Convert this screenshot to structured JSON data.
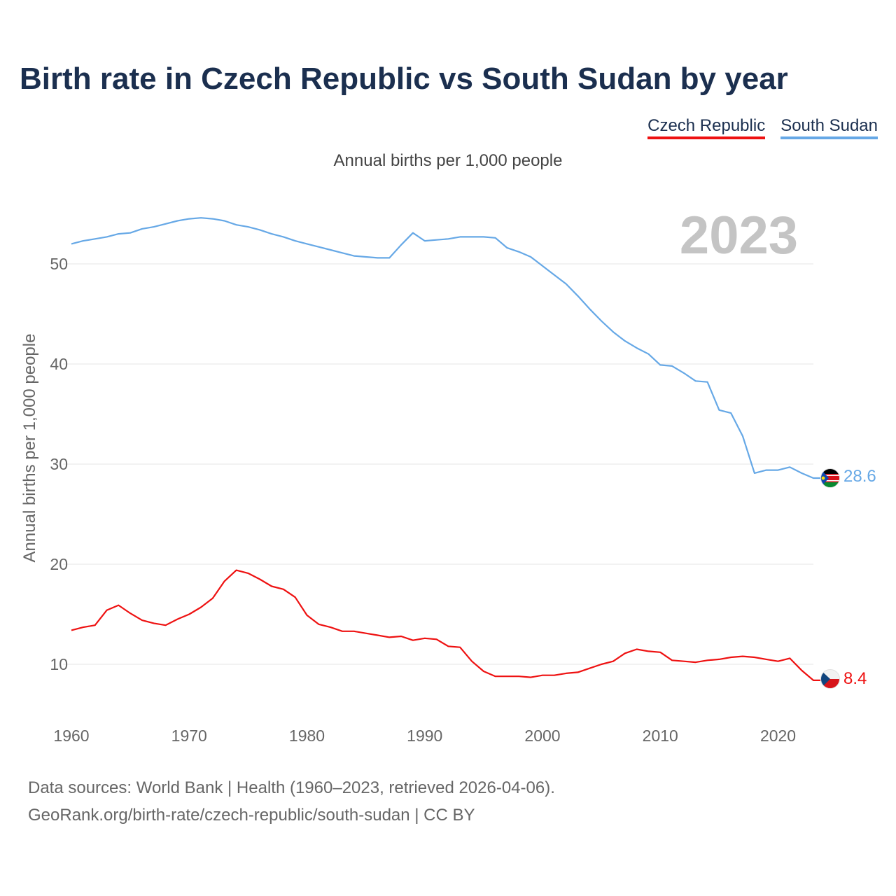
{
  "header": {
    "title": "Birth rate in Czech Republic vs South Sudan by year",
    "subtitle": "Annual births per 1,000 people"
  },
  "legend": [
    {
      "label": "Czech Republic",
      "color": "#ee1111"
    },
    {
      "label": "South Sudan",
      "color": "#66a8e6"
    }
  ],
  "footer": {
    "source_line": "Data sources: World Bank | Health (1960–2023, retrieved 2026-04-06).",
    "url_line": "GeoRank.org/birth-rate/czech-republic/south-sudan | CC BY"
  },
  "chart_data": {
    "type": "line",
    "title": "Birth rate in Czech Republic vs South Sudan by year",
    "ylabel": "Annual births per 1,000 people",
    "xlabel": "",
    "year_label": "2023",
    "xlim": [
      1960,
      2023
    ],
    "ylim": [
      5,
      57
    ],
    "x_ticks": [
      1960,
      1970,
      1980,
      1990,
      2000,
      2010,
      2020
    ],
    "y_ticks": [
      10,
      20,
      30,
      40,
      50
    ],
    "grid": true,
    "x": [
      1960,
      1961,
      1962,
      1963,
      1964,
      1965,
      1966,
      1967,
      1968,
      1969,
      1970,
      1971,
      1972,
      1973,
      1974,
      1975,
      1976,
      1977,
      1978,
      1979,
      1980,
      1981,
      1982,
      1983,
      1984,
      1985,
      1986,
      1987,
      1988,
      1989,
      1990,
      1991,
      1992,
      1993,
      1994,
      1995,
      1996,
      1997,
      1998,
      1999,
      2000,
      2001,
      2002,
      2003,
      2004,
      2005,
      2006,
      2007,
      2008,
      2009,
      2010,
      2011,
      2012,
      2013,
      2014,
      2015,
      2016,
      2017,
      2018,
      2019,
      2020,
      2021,
      2022,
      2023
    ],
    "series": [
      {
        "name": "Czech Republic",
        "color": "#ee1111",
        "end_label": "8.4",
        "values": [
          13.4,
          13.7,
          13.9,
          15.4,
          15.9,
          15.1,
          14.4,
          14.1,
          13.9,
          14.5,
          15.0,
          15.7,
          16.6,
          18.3,
          19.4,
          19.1,
          18.5,
          17.8,
          17.5,
          16.7,
          14.9,
          14.0,
          13.7,
          13.3,
          13.3,
          13.1,
          12.9,
          12.7,
          12.8,
          12.4,
          12.6,
          12.5,
          11.8,
          11.7,
          10.3,
          9.3,
          8.8,
          8.8,
          8.8,
          8.7,
          8.9,
          8.9,
          9.1,
          9.2,
          9.6,
          10.0,
          10.3,
          11.1,
          11.5,
          11.3,
          11.2,
          10.4,
          10.3,
          10.2,
          10.4,
          10.5,
          10.7,
          10.8,
          10.7,
          10.5,
          10.3,
          10.6,
          9.4,
          8.4
        ]
      },
      {
        "name": "South Sudan",
        "color": "#66a8e6",
        "end_label": "28.6",
        "values": [
          52.0,
          52.3,
          52.5,
          52.7,
          53.0,
          53.1,
          53.5,
          53.7,
          54.0,
          54.3,
          54.5,
          54.6,
          54.5,
          54.3,
          53.9,
          53.7,
          53.4,
          53.0,
          52.7,
          52.3,
          52.0,
          51.7,
          51.4,
          51.1,
          50.8,
          50.7,
          50.6,
          50.6,
          51.9,
          53.1,
          52.3,
          52.4,
          52.5,
          52.7,
          52.7,
          52.7,
          52.6,
          51.6,
          51.2,
          50.7,
          49.8,
          48.9,
          48.0,
          46.8,
          45.5,
          44.3,
          43.2,
          42.3,
          41.6,
          41.0,
          39.9,
          39.8,
          39.1,
          38.3,
          38.2,
          35.4,
          35.1,
          32.8,
          29.1,
          29.4,
          29.4,
          29.7,
          29.1,
          28.6
        ]
      }
    ]
  }
}
